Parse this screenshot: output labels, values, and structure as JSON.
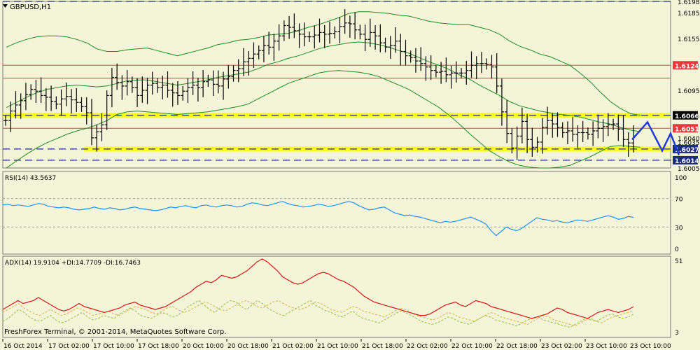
{
  "window": {
    "title": "GBPUSD,H1",
    "copyright": "FreshForex Terminal, © 2001-2014, MetaQuotes Software Corp."
  },
  "colors": {
    "background": "#f4f4d8",
    "candle": "#000000",
    "bollinger": "#1f8a1f",
    "resistance_line": "#e23b3b",
    "support_dashed": "#1b2e7a",
    "yellow_zone": "#ffff00",
    "forecast": "#1e3ad8",
    "rsi": "#1e90ff",
    "adx": "#d51515",
    "di_plus": "#8fbf3f",
    "di_minus": "#d6b24a"
  },
  "chart_data": [
    {
      "type": "candlestick",
      "name": "price",
      "title": "GBPUSD,H1",
      "ylim": [
        1.6005,
        1.6198
      ],
      "y_ticks": [
        "1.6198",
        "1.6185",
        "1.6155",
        "1.6124",
        "1.6095",
        "1.6066",
        "1.6051",
        "1.6040",
        "1.6035",
        "1.6027",
        "1.6014",
        "1.6005"
      ],
      "highlighted_levels": [
        {
          "value": 1.6198,
          "label": "1.6198",
          "style": "dashed-navy"
        },
        {
          "value": 1.6124,
          "label": "1.6124",
          "style": "red-line",
          "label_bg": "#e23b3b"
        },
        {
          "value": 1.6066,
          "label": "1.6066",
          "style": "yellow-zone",
          "label_bg": "#000000"
        },
        {
          "value": 1.6051,
          "label": "1.6051",
          "style": "red-line",
          "label_bg": "#e23b3b"
        },
        {
          "value": 1.6027,
          "label": "1.6027",
          "style": "yellow-zone",
          "label_bg": "#1b2e7a"
        },
        {
          "value": 1.6014,
          "label": "1.6014",
          "style": "dashed-navy",
          "label_bg": "#1b2e7a"
        }
      ],
      "extra_lines": [
        1.6109
      ],
      "x_labels": [
        "16 Oct 2014",
        "17 Oct 02:00",
        "17 Oct 10:00",
        "17 Oct 18:00",
        "20 Oct 10:00",
        "20 Oct 18:00",
        "21 Oct 02:00",
        "21 Oct 10:00",
        "21 Oct 18:00",
        "22 Oct 02:00",
        "22 Oct 10:00",
        "22 Oct 18:00",
        "23 Oct 02:00",
        "23 Oct 10:00"
      ],
      "close": [
        1.606,
        1.6071,
        1.6078,
        1.6083,
        1.609,
        1.6096,
        1.6094,
        1.6089,
        1.6087,
        1.6082,
        1.6079,
        1.6085,
        1.6088,
        1.6084,
        1.6081,
        1.6076,
        1.6069,
        1.604,
        1.6047,
        1.6055,
        1.6089,
        1.611,
        1.6104,
        1.61,
        1.6105,
        1.6098,
        1.6089,
        1.6095,
        1.6101,
        1.6103,
        1.6098,
        1.6101,
        1.6095,
        1.6092,
        1.6089,
        1.6094,
        1.6098,
        1.6101,
        1.6098,
        1.6105,
        1.6107,
        1.6102,
        1.61,
        1.6108,
        1.6111,
        1.6118,
        1.612,
        1.6128,
        1.6132,
        1.6137,
        1.6141,
        1.6147,
        1.6145,
        1.6152,
        1.6158,
        1.617,
        1.6168,
        1.6164,
        1.616,
        1.6157,
        1.6157,
        1.6159,
        1.6162,
        1.616,
        1.6161,
        1.6163,
        1.6169,
        1.6173,
        1.6172,
        1.6165,
        1.616,
        1.6154,
        1.6162,
        1.6158,
        1.615,
        1.6145,
        1.6147,
        1.6152,
        1.614,
        1.6135,
        1.6133,
        1.6129,
        1.6126,
        1.6122,
        1.6118,
        1.6116,
        1.6117,
        1.6113,
        1.6115,
        1.6115,
        1.6115,
        1.6118,
        1.6124,
        1.6126,
        1.6126,
        1.6125,
        1.6122,
        1.61,
        1.607,
        1.6045,
        1.6028,
        1.6042,
        1.6059,
        1.6038,
        1.6029,
        1.6035,
        1.6052,
        1.606,
        1.6056,
        1.6052,
        1.6046,
        1.6048,
        1.6044,
        1.6046,
        1.6046,
        1.6044,
        1.6048,
        1.6051,
        1.6053,
        1.6055,
        1.6056,
        1.605,
        1.6038,
        1.6034,
        1.6041
      ],
      "bollinger_upper": [
        1.6145,
        1.615,
        1.6154,
        1.6157,
        1.6158,
        1.6158,
        1.6157,
        1.6154,
        1.615,
        1.6143,
        1.614,
        1.614,
        1.6142,
        1.6143,
        1.6144,
        1.6141,
        1.6138,
        1.6135,
        1.6138,
        1.6141,
        1.6144,
        1.6148,
        1.615,
        1.6153,
        1.6154,
        1.6156,
        1.6159,
        1.616,
        1.6161,
        1.6164,
        1.6168,
        1.6171,
        1.6175,
        1.6179,
        1.6184,
        1.6186,
        1.6186,
        1.6185,
        1.6184,
        1.6182,
        1.6181,
        1.6178,
        1.6175,
        1.6173,
        1.6172,
        1.6171,
        1.6171,
        1.6168,
        1.6165,
        1.616,
        1.6152,
        1.6146,
        1.6142,
        1.6137,
        1.6134,
        1.6129,
        1.6124,
        1.6115,
        1.6105,
        1.6093,
        1.6082,
        1.6074,
        1.6068,
        1.6066
      ],
      "bollinger_lower": [
        1.6005,
        1.6013,
        1.6021,
        1.6028,
        1.6034,
        1.6039,
        1.6044,
        1.6048,
        1.6051,
        1.6055,
        1.606,
        1.6067,
        1.607,
        1.6071,
        1.607,
        1.6069,
        1.6068,
        1.6067,
        1.6068,
        1.6069,
        1.607,
        1.6072,
        1.6074,
        1.6076,
        1.6079,
        1.6085,
        1.6091,
        1.6097,
        1.6103,
        1.6107,
        1.6111,
        1.6115,
        1.6117,
        1.6118,
        1.6117,
        1.6116,
        1.6114,
        1.6111,
        1.6106,
        1.6101,
        1.6096,
        1.6089,
        1.6082,
        1.6075,
        1.6066,
        1.6056,
        1.6045,
        1.6035,
        1.6025,
        1.6018,
        1.6012,
        1.6008,
        1.6006,
        1.6005,
        1.6005,
        1.6006,
        1.6008,
        1.6013,
        1.6018,
        1.6024,
        1.603,
        1.6031,
        1.603,
        1.6029
      ],
      "bollinger_middle": [
        1.6075,
        1.6081,
        1.6087,
        1.6092,
        1.6096,
        1.6098,
        1.61,
        1.6101,
        1.61,
        1.6099,
        1.61,
        1.6103,
        1.6106,
        1.6107,
        1.6107,
        1.6105,
        1.6103,
        1.6101,
        1.6103,
        1.6105,
        1.6107,
        1.611,
        1.6112,
        1.6114,
        1.6116,
        1.612,
        1.6125,
        1.6128,
        1.6132,
        1.6135,
        1.6139,
        1.6143,
        1.6146,
        1.6148,
        1.615,
        1.6151,
        1.615,
        1.6148,
        1.6145,
        1.6141,
        1.6138,
        1.6133,
        1.6128,
        1.6124,
        1.6119,
        1.6113,
        1.6108,
        1.6101,
        1.6095,
        1.6089,
        1.6082,
        1.6077,
        1.6074,
        1.6071,
        1.6069,
        1.6067,
        1.6066,
        1.6064,
        1.6061,
        1.6058,
        1.6056,
        1.6052,
        1.6049,
        1.6047
      ],
      "forecast": [
        [
          1.6038,
          1.6058
        ],
        [
          1.6058,
          1.6025
        ],
        [
          1.6025,
          1.6045
        ],
        [
          1.6045,
          1.602
        ]
      ]
    },
    {
      "type": "line",
      "name": "RSI",
      "label": "RSI(14) 43.5637",
      "ylim": [
        0,
        100
      ],
      "y_ticks": [
        "100",
        "70",
        "30",
        "0"
      ],
      "levels": [
        70,
        30
      ],
      "values": [
        61,
        62,
        60,
        61,
        60,
        59,
        61,
        63,
        62,
        59,
        58,
        57,
        58,
        57,
        55,
        54,
        55,
        56,
        58,
        56,
        55,
        57,
        56,
        54,
        55,
        57,
        58,
        56,
        55,
        54,
        53,
        54,
        56,
        58,
        57,
        59,
        60,
        58,
        57,
        60,
        61,
        59,
        58,
        60,
        61,
        60,
        58,
        59,
        62,
        64,
        63,
        61,
        60,
        62,
        64,
        66,
        63,
        61,
        60,
        58,
        59,
        60,
        62,
        61,
        59,
        60,
        62,
        64,
        66,
        64,
        60,
        57,
        54,
        55,
        57,
        58,
        54,
        50,
        48,
        46,
        47,
        45,
        44,
        42,
        40,
        38,
        36,
        38,
        37,
        38,
        40,
        42,
        44,
        41,
        38,
        34,
        25,
        18,
        24,
        30,
        27,
        25,
        28,
        33,
        38,
        43,
        41,
        40,
        38,
        39,
        37,
        36,
        38,
        40,
        39,
        38,
        40,
        42,
        44,
        46,
        44,
        41,
        42,
        45,
        43.5637
      ]
    },
    {
      "type": "line",
      "name": "ADX",
      "label": "ADX(14) 19.9104 +DI:14.7709 -DI:16.7463",
      "y_ticks": [
        "51",
        "3"
      ],
      "ylim": [
        3,
        51
      ],
      "adx": [
        18,
        20,
        22,
        24,
        22,
        23,
        24,
        26,
        24,
        22,
        20,
        18,
        17,
        18,
        20,
        22,
        20,
        19,
        18,
        17,
        16,
        17,
        18,
        19,
        21,
        22,
        23,
        21,
        20,
        19,
        18,
        19,
        20,
        22,
        24,
        26,
        28,
        30,
        33,
        35,
        37,
        36,
        38,
        41,
        40,
        39,
        40,
        42,
        44,
        47,
        50,
        52,
        50,
        47,
        44,
        40,
        38,
        36,
        35,
        36,
        38,
        40,
        42,
        43,
        42,
        40,
        38,
        37,
        35,
        33,
        30,
        27,
        25,
        23,
        22,
        21,
        20,
        19,
        18,
        17,
        16,
        15,
        14,
        14,
        15,
        17,
        19,
        21,
        22,
        23,
        21,
        20,
        22,
        24,
        23,
        22,
        20,
        19,
        18,
        17,
        16,
        15,
        14,
        13,
        12,
        13,
        14,
        15,
        17,
        19,
        18,
        16,
        15,
        14,
        13,
        12,
        14,
        16,
        17,
        18,
        17,
        16,
        17,
        18,
        19.9104
      ],
      "di_plus": [
        10,
        12,
        15,
        18,
        16,
        13,
        11,
        10,
        12,
        14,
        11,
        9,
        10,
        12,
        14,
        16,
        13,
        11,
        12,
        14,
        13,
        12,
        15,
        17,
        19,
        17,
        14,
        13,
        12,
        14,
        16,
        15,
        13,
        14,
        17,
        20,
        22,
        24,
        21,
        18,
        16,
        19,
        22,
        24,
        23,
        20,
        18,
        21,
        24,
        22,
        19,
        17,
        15,
        14,
        16,
        18,
        20,
        22,
        24,
        21,
        19,
        17,
        16,
        14,
        13,
        15,
        17,
        14,
        12,
        11,
        10,
        9,
        11,
        13,
        15,
        17,
        16,
        14,
        12,
        10,
        9,
        8,
        9,
        11,
        13,
        12,
        10,
        9,
        8,
        10,
        12,
        14,
        13,
        11,
        10,
        9,
        8,
        7,
        9,
        11,
        12,
        13,
        11,
        10,
        9,
        8,
        7,
        6,
        8,
        10,
        12,
        11,
        10,
        12,
        14,
        15,
        13,
        12,
        13,
        14.7709
      ],
      "di_minus": [
        16,
        18,
        20,
        22,
        19,
        17,
        15,
        14,
        16,
        18,
        16,
        14,
        15,
        17,
        19,
        18,
        16,
        14,
        15,
        16,
        17,
        15,
        14,
        16,
        18,
        20,
        19,
        18,
        16,
        15,
        17,
        19,
        20,
        18,
        16,
        17,
        19,
        21,
        23,
        22,
        20,
        18,
        17,
        19,
        21,
        23,
        24,
        22,
        20,
        19,
        21,
        23,
        24,
        22,
        20,
        19,
        18,
        19,
        21,
        23,
        22,
        20,
        18,
        17,
        16,
        18,
        20,
        19,
        17,
        16,
        15,
        14,
        13,
        15,
        17,
        19,
        18,
        16,
        14,
        13,
        12,
        11,
        12,
        14,
        16,
        15,
        13,
        12,
        11,
        10,
        12,
        14,
        16,
        15,
        13,
        12,
        11,
        10,
        9,
        8,
        10,
        12,
        14,
        13,
        11,
        10,
        9,
        8,
        7,
        9,
        11,
        12,
        10,
        9,
        11,
        13,
        14,
        15,
        16,
        16.7463
      ]
    }
  ]
}
